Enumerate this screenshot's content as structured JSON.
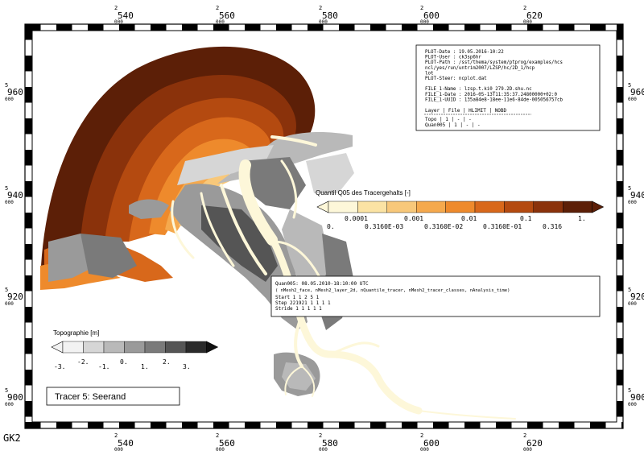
{
  "coordinate_system": "GK2",
  "x_ticks": [
    {
      "top": "2",
      "main": "540",
      "bottom": "000"
    },
    {
      "top": "2",
      "main": "560",
      "bottom": "000"
    },
    {
      "top": "2",
      "main": "580",
      "bottom": "000"
    },
    {
      "top": "2",
      "main": "600",
      "bottom": "000"
    },
    {
      "top": "2",
      "main": "620",
      "bottom": "000"
    }
  ],
  "y_ticks": [
    {
      "top": "5",
      "main": "960",
      "bottom": "000"
    },
    {
      "top": "5",
      "main": "940",
      "bottom": "000"
    },
    {
      "top": "5",
      "main": "920",
      "bottom": "000"
    },
    {
      "top": "5",
      "main": "900",
      "bottom": "000"
    }
  ],
  "plot_info": {
    "lines": [
      "PLOT-Date : 19.05.2016-10:22",
      "PLOT-User : ck3sp6hr",
      "PLOT-Path : /sst/thema/system/ptprog/examples/hcs",
      "            ncl/yes/run/untrim2007/LZSP/hc/2D_1/hcp",
      "            lot",
      "PLOT-Steer: ncplot.dat",
      "",
      "FILE_1-Name : lzsp.t.ki0_279.2D.shu.nc",
      "FILE_1-Date : 2016-05-13T11:35:37.24800000+02:0",
      "FILE_1-UUID : 135a84e8-18ee-11e6-84de-005056757cb"
    ],
    "table_header": "Layer  | File | HLIMIT | NOBD",
    "table_rows": [
      "Topo     |  1  |   -    |  -",
      "Quan005  |  1  |   -    |  -"
    ]
  },
  "tracer_legend": {
    "title": "Quantil Q05 des Tracergehalts [-]",
    "upper_labels": [
      "0.0001",
      "0.001",
      "0.01",
      "0.1",
      "1."
    ],
    "lower_labels": [
      "0.",
      "0.3160E-03",
      "0.3160E-02",
      "0.3160E-01",
      "0.316"
    ],
    "colors": [
      "#fdf7d9",
      "#fbe3a4",
      "#f8c87a",
      "#f5a94d",
      "#ee8a2c",
      "#d8681b",
      "#b44a10",
      "#8a320b",
      "#5c1f07"
    ]
  },
  "data_info": {
    "header": "Quan005: 08.05.2010-18:10:00 UTC",
    "dims": "( nMesh2_face, nMesh2_layer_2d, nQuantile_tracer, nMesh2_tracer_classes, nAnalysis_time)",
    "rows": [
      "Start        1       1     2     5     1",
      "Step    221921       1     1     1     1",
      "Stride       1       1     1     1     1"
    ]
  },
  "topo_legend": {
    "title": "Topographie [m]",
    "labels": [
      "-3.",
      "-2.",
      "-1.",
      "0.",
      "1.",
      "2.",
      "3."
    ],
    "colors": [
      "#f2f2f2",
      "#d6d6d6",
      "#b9b9b9",
      "#9a9a9a",
      "#7a7a7a",
      "#555555",
      "#2a2a2a"
    ]
  },
  "caption": "Tracer 5: Seerand"
}
